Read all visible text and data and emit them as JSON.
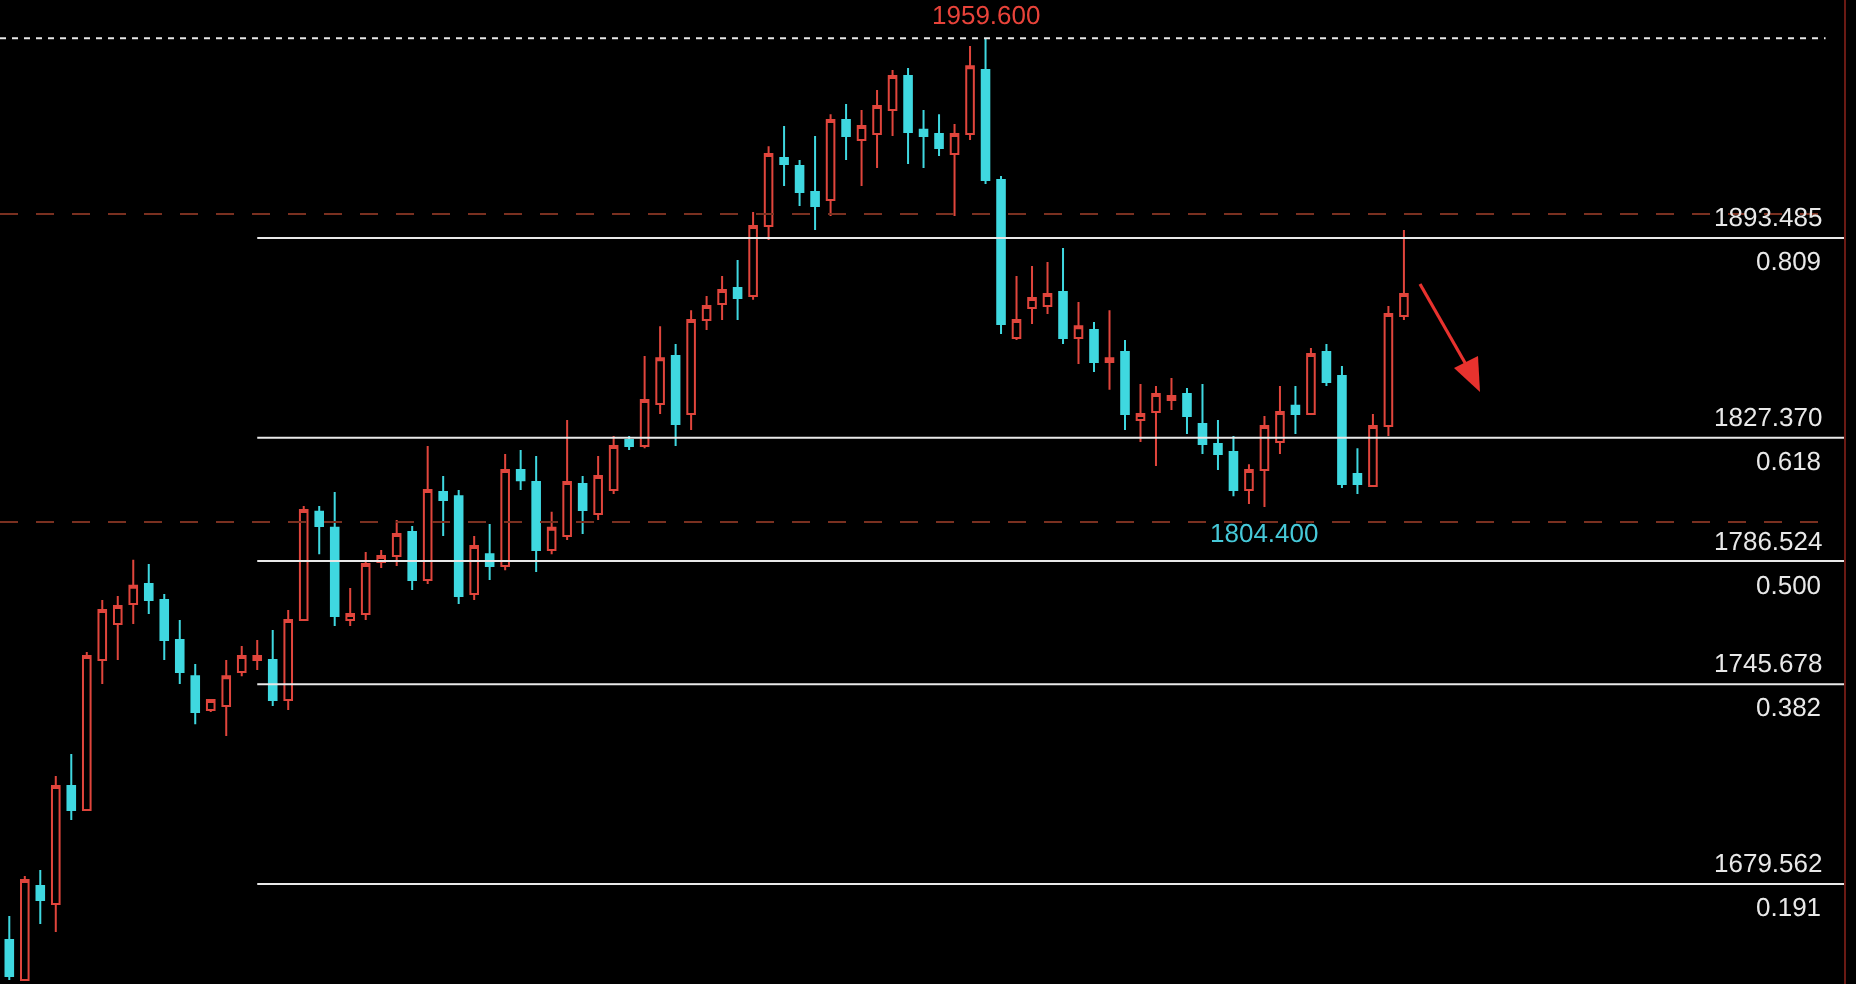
{
  "chart_data": {
    "type": "candlestick",
    "tick_labels": false,
    "categories": [
      null,
      null,
      null,
      null,
      null,
      null,
      null,
      null,
      null,
      null,
      null,
      null,
      null,
      null,
      null,
      null,
      null,
      null,
      null,
      null,
      null,
      null,
      null,
      null,
      null,
      null,
      null,
      null,
      null,
      null,
      null,
      null,
      null,
      null,
      null,
      null,
      null,
      null,
      null,
      null,
      null,
      null,
      null,
      null,
      null,
      null,
      null,
      null,
      null,
      null,
      null,
      null,
      null,
      null,
      null,
      null,
      null,
      null,
      null,
      null,
      null,
      null,
      null,
      null,
      null,
      null,
      null,
      null,
      null,
      null,
      null,
      null,
      null,
      null,
      null,
      null,
      null,
      null,
      null,
      null,
      null,
      null,
      null,
      null,
      null,
      null,
      null,
      null,
      null,
      null,
      null
    ],
    "ohlc": [
      [
        1661.0,
        1669.0,
        1647.8,
        1649.1
      ],
      [
        1647.8,
        1682.2,
        1647.8,
        1680.9
      ],
      [
        1678.9,
        1684.2,
        1666.3,
        1674.3
      ],
      [
        1672.9,
        1715.3,
        1663.7,
        1712.0
      ],
      [
        1712.0,
        1722.6,
        1700.8,
        1704.1
      ],
      [
        1704.1,
        1756.4,
        1704.1,
        1755.1
      ],
      [
        1753.7,
        1773.6,
        1745.8,
        1770.3
      ],
      [
        1765.7,
        1774.9,
        1753.7,
        1771.6
      ],
      [
        1772.3,
        1786.9,
        1765.7,
        1778.3
      ],
      [
        1778.9,
        1785.5,
        1769.0,
        1773.6
      ],
      [
        1773.6,
        1775.6,
        1753.7,
        1760.4
      ],
      [
        1760.4,
        1767.0,
        1745.8,
        1749.8
      ],
      [
        1748.4,
        1752.4,
        1732.5,
        1736.5
      ],
      [
        1737.2,
        1740.5,
        1736.5,
        1740.5
      ],
      [
        1738.5,
        1753.7,
        1728.6,
        1748.4
      ],
      [
        1749.8,
        1758.4,
        1748.4,
        1755.1
      ],
      [
        1753.7,
        1760.4,
        1750.4,
        1755.1
      ],
      [
        1753.7,
        1763.7,
        1738.5,
        1740.5
      ],
      [
        1740.5,
        1770.3,
        1737.2,
        1767.0
      ],
      [
        1767.0,
        1804.7,
        1767.0,
        1803.4
      ],
      [
        1802.8,
        1804.7,
        1788.8,
        1798.1
      ],
      [
        1797.5,
        1809.4,
        1765.0,
        1768.3
      ],
      [
        1767.0,
        1777.6,
        1765.0,
        1769.0
      ],
      [
        1769.0,
        1789.5,
        1767.0,
        1785.5
      ],
      [
        1786.2,
        1790.2,
        1784.2,
        1788.2
      ],
      [
        1788.2,
        1800.1,
        1784.9,
        1795.5
      ],
      [
        1796.1,
        1798.1,
        1776.9,
        1780.2
      ],
      [
        1780.2,
        1824.6,
        1778.9,
        1810.0
      ],
      [
        1809.4,
        1814.7,
        1794.8,
        1806.7
      ],
      [
        1808.0,
        1810.0,
        1772.3,
        1774.9
      ],
      [
        1775.6,
        1794.8,
        1773.6,
        1791.5
      ],
      [
        1788.8,
        1798.8,
        1780.2,
        1784.9
      ],
      [
        1784.9,
        1822.0,
        1783.5,
        1816.7
      ],
      [
        1816.7,
        1823.3,
        1810.0,
        1813.3
      ],
      [
        1812.7,
        1821.3,
        1782.9,
        1790.2
      ],
      [
        1790.2,
        1802.8,
        1788.8,
        1797.5
      ],
      [
        1794.8,
        1833.2,
        1793.5,
        1812.7
      ],
      [
        1812.0,
        1814.7,
        1795.5,
        1803.4
      ],
      [
        1802.1,
        1821.3,
        1800.1,
        1814.7
      ],
      [
        1810.0,
        1827.9,
        1808.7,
        1824.6
      ],
      [
        1826.6,
        1827.9,
        1823.3,
        1824.6
      ],
      [
        1824.6,
        1854.4,
        1823.9,
        1839.8
      ],
      [
        1838.5,
        1864.3,
        1835.2,
        1853.7
      ],
      [
        1854.4,
        1858.4,
        1824.6,
        1831.9
      ],
      [
        1835.2,
        1869.6,
        1829.9,
        1866.3
      ],
      [
        1866.3,
        1874.3,
        1863.0,
        1871.0
      ],
      [
        1871.6,
        1880.9,
        1866.3,
        1876.3
      ],
      [
        1876.9,
        1886.2,
        1866.3,
        1873.6
      ],
      [
        1874.3,
        1902.1,
        1873.0,
        1897.5
      ],
      [
        1897.5,
        1923.9,
        1892.8,
        1921.3
      ],
      [
        1920.0,
        1930.6,
        1910.7,
        1918.0
      ],
      [
        1917.3,
        1919.3,
        1904.1,
        1908.7
      ],
      [
        1908.7,
        1927.3,
        1896.1,
        1904.1
      ],
      [
        1906.1,
        1934.5,
        1900.8,
        1932.6
      ],
      [
        1932.6,
        1937.9,
        1919.3,
        1927.3
      ],
      [
        1925.9,
        1935.9,
        1910.7,
        1930.6
      ],
      [
        1927.9,
        1942.5,
        1916.7,
        1937.2
      ],
      [
        1935.9,
        1949.1,
        1927.3,
        1947.1
      ],
      [
        1947.1,
        1949.8,
        1918.0,
        1928.6
      ],
      [
        1929.3,
        1935.9,
        1916.7,
        1927.3
      ],
      [
        1927.9,
        1934.5,
        1920.6,
        1923.3
      ],
      [
        1921.3,
        1931.2,
        1900.8,
        1927.9
      ],
      [
        1927.9,
        1957.1,
        1925.9,
        1950.4
      ],
      [
        1949.1,
        1959.6,
        1911.4,
        1912.7
      ],
      [
        1912.7,
        1914.0,
        1861.7,
        1865.0
      ],
      [
        1860.4,
        1880.9,
        1859.7,
        1866.3
      ],
      [
        1870.3,
        1884.2,
        1865.0,
        1873.6
      ],
      [
        1871.0,
        1885.5,
        1868.3,
        1874.9
      ],
      [
        1875.6,
        1890.2,
        1858.4,
        1860.4
      ],
      [
        1860.4,
        1872.3,
        1851.8,
        1864.3
      ],
      [
        1863.0,
        1865.7,
        1849.1,
        1852.4
      ],
      [
        1852.4,
        1869.6,
        1843.2,
        1853.7
      ],
      [
        1855.7,
        1859.7,
        1829.9,
        1835.2
      ],
      [
        1833.2,
        1845.1,
        1825.9,
        1835.2
      ],
      [
        1835.9,
        1844.5,
        1818.0,
        1841.8
      ],
      [
        1839.8,
        1847.1,
        1836.5,
        1841.2
      ],
      [
        1841.8,
        1843.8,
        1828.6,
        1834.5
      ],
      [
        1831.9,
        1845.1,
        1822.0,
        1825.3
      ],
      [
        1825.3,
        1833.2,
        1816.7,
        1822.0
      ],
      [
        1822.6,
        1827.9,
        1808.0,
        1810.0
      ],
      [
        1810.0,
        1818.6,
        1805.4,
        1816.7
      ],
      [
        1816.7,
        1834.5,
        1804.4,
        1831.2
      ],
      [
        1825.9,
        1844.5,
        1822.0,
        1835.9
      ],
      [
        1837.9,
        1844.5,
        1828.6,
        1835.2
      ],
      [
        1835.2,
        1857.1,
        1835.2,
        1855.1
      ],
      [
        1855.7,
        1858.4,
        1844.5,
        1845.8
      ],
      [
        1847.8,
        1851.1,
        1810.7,
        1812.0
      ],
      [
        1815.3,
        1823.9,
        1808.7,
        1812.0
      ],
      [
        1811.4,
        1835.2,
        1811.4,
        1831.2
      ],
      [
        1831.2,
        1871.0,
        1827.9,
        1868.3
      ],
      [
        1867.7,
        1896.1,
        1866.3,
        1874.9
      ]
    ],
    "colors": [
      "#3fd8e0",
      "#e0453c",
      "#3fd8e0",
      "#e0453c",
      "#3fd8e0",
      "#e0453c",
      "#e0453c",
      "#e0453c",
      "#e0453c",
      "#3fd8e0",
      "#3fd8e0",
      "#3fd8e0",
      "#3fd8e0",
      "#e0453c",
      "#e0453c",
      "#e0453c",
      "#e0453c",
      "#3fd8e0",
      "#e0453c",
      "#e0453c",
      "#3fd8e0",
      "#3fd8e0",
      "#e0453c",
      "#e0453c",
      "#e0453c",
      "#e0453c",
      "#3fd8e0",
      "#e0453c",
      "#3fd8e0",
      "#3fd8e0",
      "#e0453c",
      "#3fd8e0",
      "#e0453c",
      "#3fd8e0",
      "#3fd8e0",
      "#e0453c",
      "#e0453c",
      "#3fd8e0",
      "#e0453c",
      "#e0453c",
      "#3fd8e0",
      "#e0453c",
      "#e0453c",
      "#3fd8e0",
      "#e0453c",
      "#e0453c",
      "#e0453c",
      "#3fd8e0",
      "#e0453c",
      "#e0453c",
      "#3fd8e0",
      "#3fd8e0",
      "#3fd8e0",
      "#e0453c",
      "#3fd8e0",
      "#e0453c",
      "#e0453c",
      "#e0453c",
      "#3fd8e0",
      "#3fd8e0",
      "#3fd8e0",
      "#e0453c",
      "#e0453c",
      "#3fd8e0",
      "#3fd8e0",
      "#e0453c",
      "#e0453c",
      "#e0453c",
      "#3fd8e0",
      "#e0453c",
      "#3fd8e0",
      "#e0453c",
      "#3fd8e0",
      "#e0453c",
      "#e0453c",
      "#e0453c",
      "#3fd8e0",
      "#3fd8e0",
      "#3fd8e0",
      "#3fd8e0",
      "#e0453c",
      "#e0453c",
      "#e0453c",
      "#3fd8e0",
      "#e0453c",
      "#3fd8e0",
      "#3fd8e0",
      "#3fd8e0",
      "#e0453c",
      "#e0453c",
      "#e0453c"
    ],
    "ylim": [
      1646.45,
      1972.3
    ],
    "ref_lines": [
      {
        "axis": "y",
        "value": 1959.6,
        "label": null,
        "color": "#e8e8e8",
        "line_style": "dotted"
      },
      {
        "axis": "y",
        "value": 1901.4,
        "label": null,
        "color": "#7a3020",
        "line_style": "dashed"
      },
      {
        "axis": "y",
        "value": 1799.4,
        "label": null,
        "color": "#7a3020",
        "line_style": "dashed"
      },
      {
        "axis": "y",
        "value": 1893.485,
        "label": "1893.485\n0.809",
        "color": "#e8e8e8",
        "line_style": "solid"
      },
      {
        "axis": "y",
        "value": 1827.37,
        "label": "1827.370\n0.618",
        "color": "#e8e8e8",
        "line_style": "solid"
      },
      {
        "axis": "y",
        "value": 1786.524,
        "label": "1786.524\n0.500",
        "color": "#e8e8e8",
        "line_style": "solid"
      },
      {
        "axis": "y",
        "value": 1745.678,
        "label": "1745.678\n0.382",
        "color": "#e8e8e8",
        "line_style": "solid"
      },
      {
        "axis": "y",
        "value": 1679.562,
        "label": "1679.562\n0.191",
        "color": "#e8e8e8",
        "line_style": "solid"
      }
    ],
    "annotations": [
      {
        "text": "1959.600",
        "y": 1959.6
      },
      {
        "text": "1804.400",
        "y": 1804.4
      }
    ]
  }
}
